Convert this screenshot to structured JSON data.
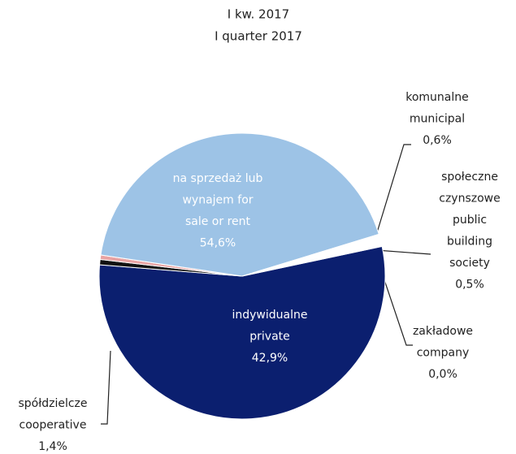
{
  "chart_data": {
    "type": "pie",
    "title": "I kw. 2017",
    "subtitle": "I quarter 2017",
    "categories": [
      [
        "na sprzedaż  lub",
        "wynajem  for",
        "sale or rent"
      ],
      [
        "komunalne",
        "municipal"
      ],
      [
        "społeczne",
        "czynszowe",
        "public",
        "building",
        "society"
      ],
      [
        "zakładowe",
        "company"
      ],
      [
        "indywidualne",
        "private"
      ],
      [
        "spółdzielcze",
        "cooperative"
      ]
    ],
    "values": [
      54.6,
      0.6,
      0.5,
      0.0,
      42.9,
      1.4
    ],
    "value_labels": [
      "54,6%",
      "0,6%",
      "0,5%",
      "0,0%",
      "42,9%",
      "1,4%"
    ],
    "colors": [
      "#0b1f6f",
      "#111111",
      "#e8a3a3",
      "#c9c9c9",
      "#9dc3e6",
      "#ffffff"
    ]
  }
}
